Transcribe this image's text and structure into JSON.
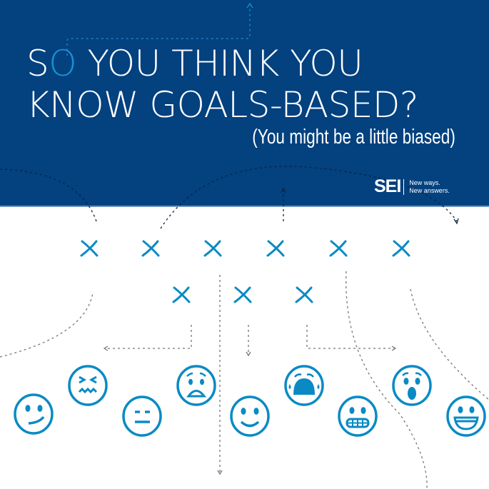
{
  "header": {
    "title_line1_prefix": "S",
    "title_line1_accent": "O",
    "title_line1_rest": " YOU THINK YOU",
    "title_line2": "KNOW GOALS-BASED?",
    "subtitle": "(You might be a little biased)"
  },
  "logo": {
    "mark": "SEI",
    "tagline_line1": "New ways.",
    "tagline_line2": "New answers."
  },
  "colors": {
    "banner": "#03417f",
    "accent": "#0a8ac4",
    "dashes": "#666666"
  },
  "illustration": {
    "x_marks_row1": 6,
    "x_marks_row2": 3,
    "emojis": [
      "slight-smile-icon",
      "confounded-icon",
      "expressionless-icon",
      "fearful-icon",
      "smile-icon",
      "crying-icon",
      "grimacing-icon",
      "astonished-icon",
      "grinning-icon"
    ]
  }
}
